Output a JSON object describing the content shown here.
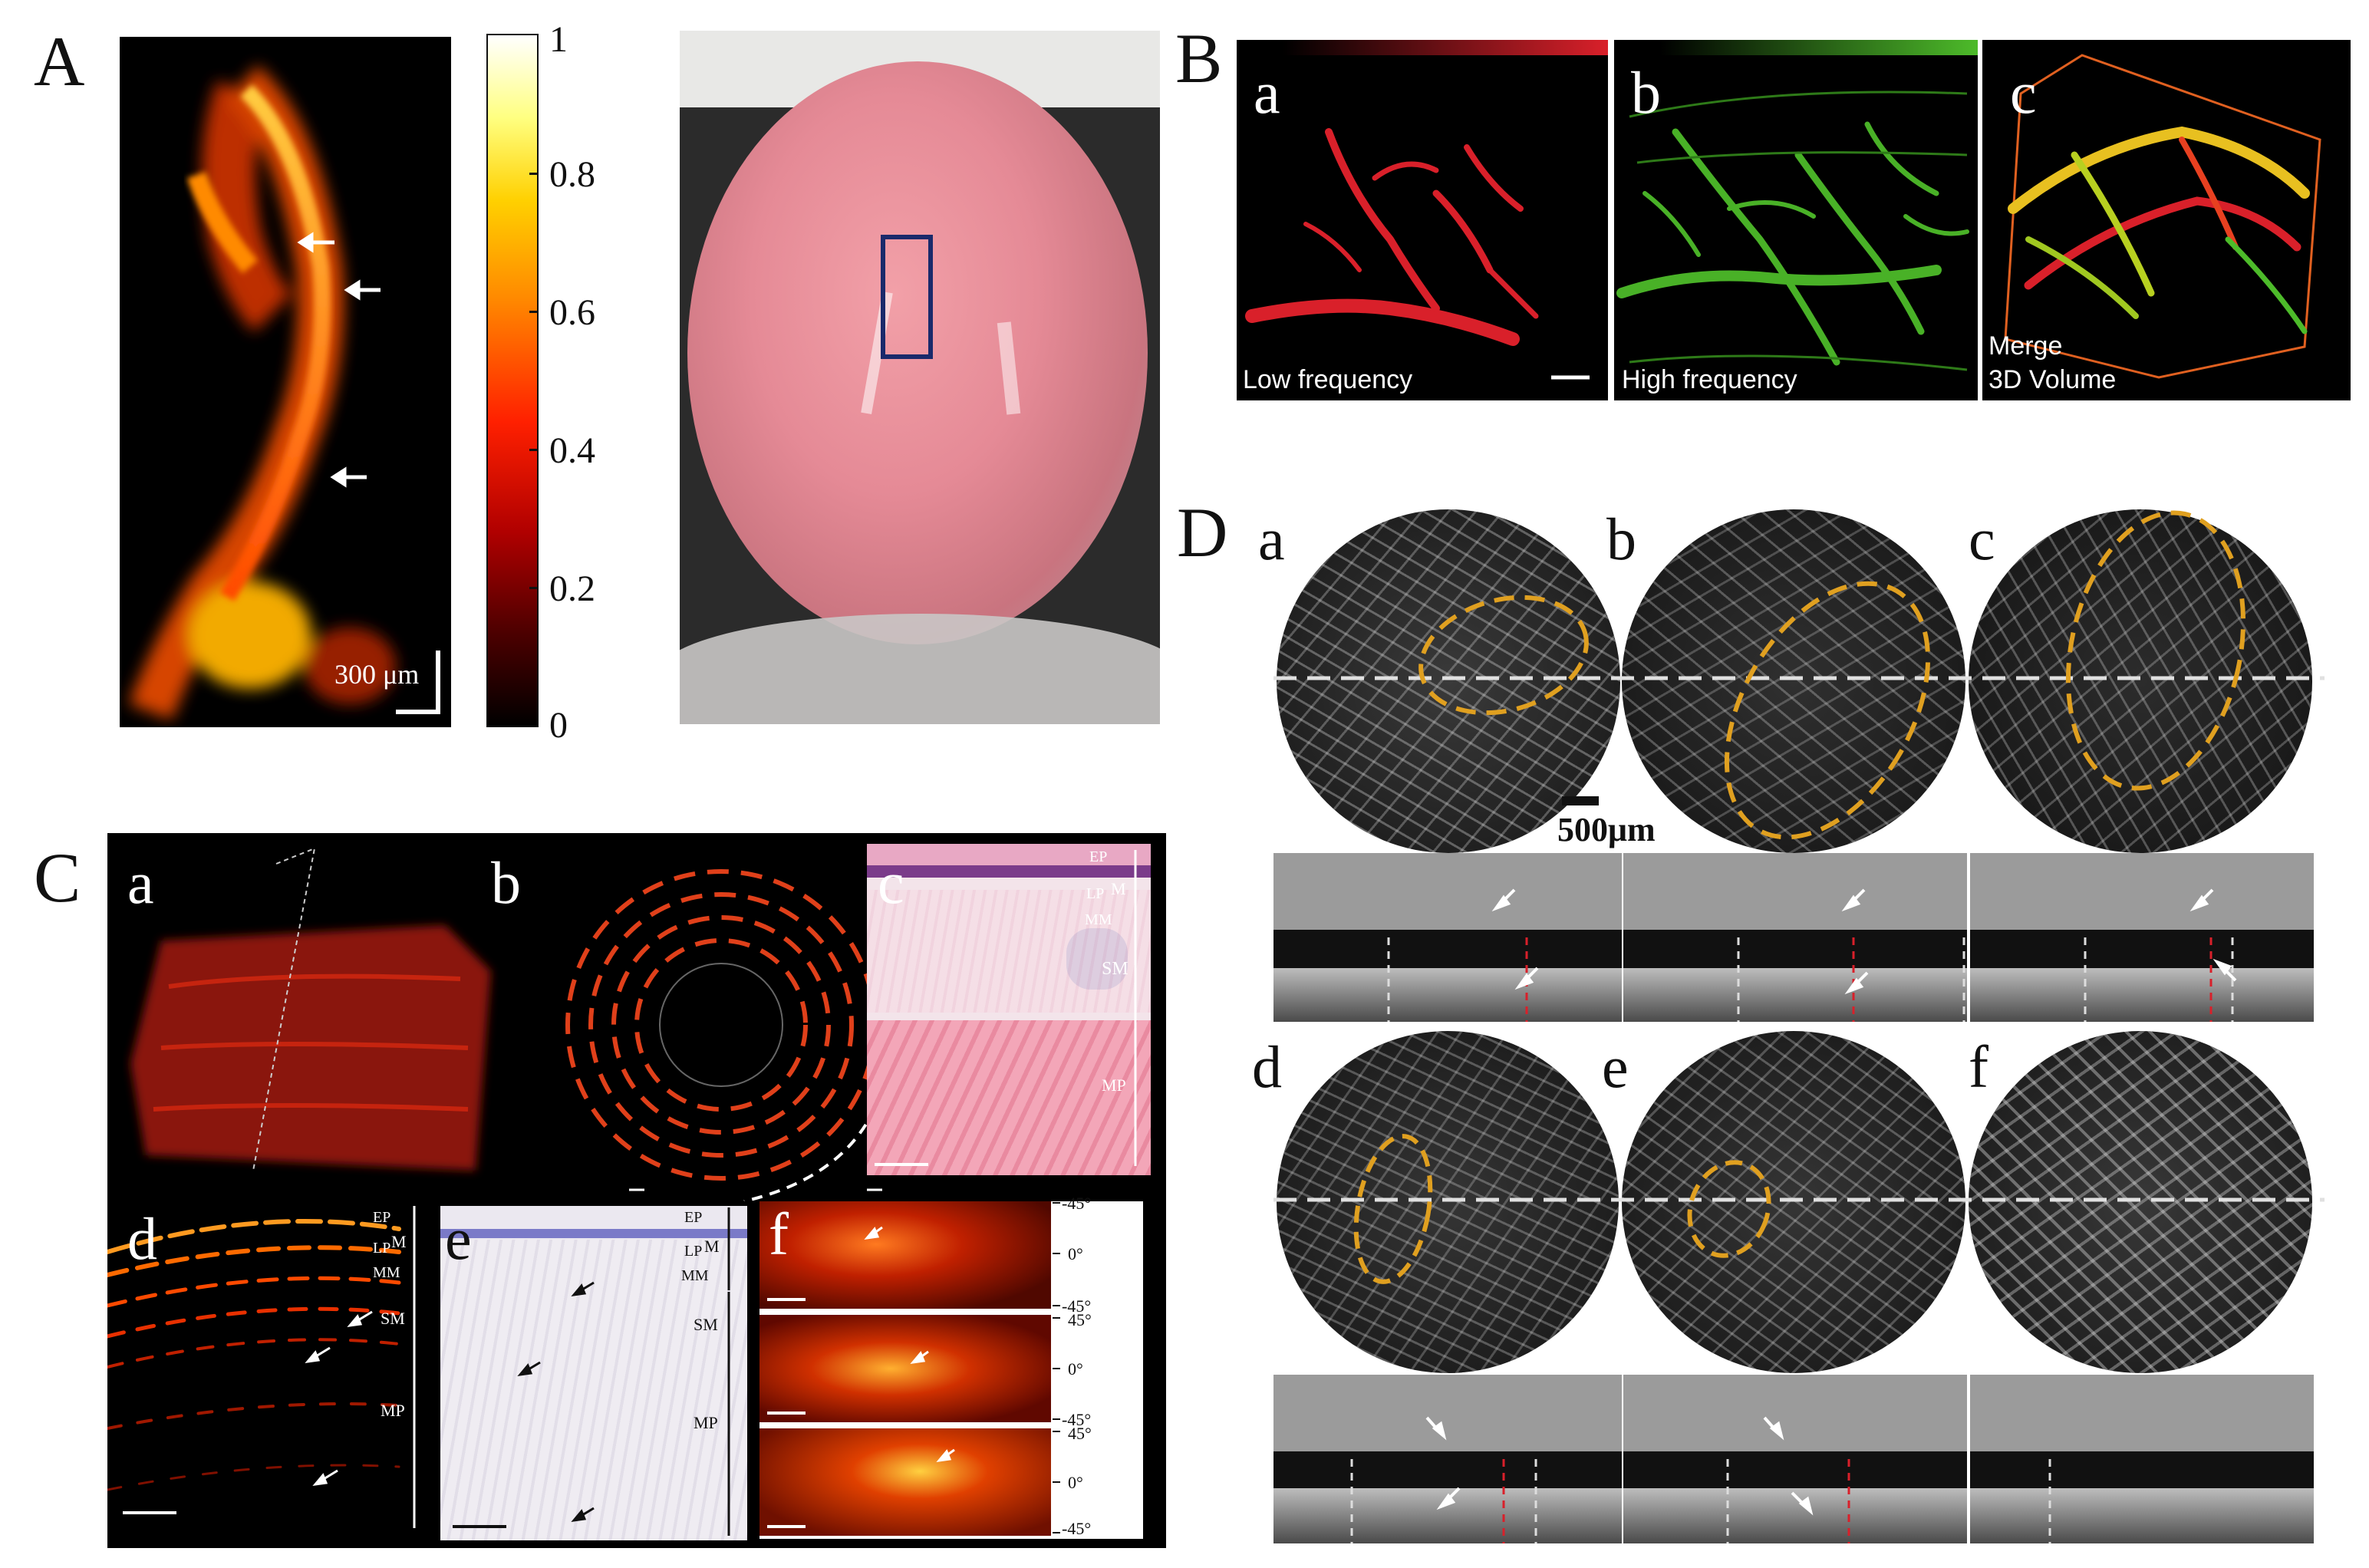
{
  "panels": {
    "A": {
      "label": "A",
      "colorbar_ticks": [
        "1",
        "0.8",
        "0.6",
        "0.4",
        "0.2",
        "0"
      ],
      "scalebar": "300 μm"
    },
    "B": {
      "label": "B",
      "sub": [
        {
          "letter": "a",
          "caption": "Low frequency"
        },
        {
          "letter": "b",
          "caption": "High frequency"
        },
        {
          "letter": "c",
          "caption_line1": "Merge",
          "caption_line2": "3D Volume"
        }
      ]
    },
    "C": {
      "label": "C",
      "sub_letters": [
        "a",
        "b",
        "c",
        "d",
        "e",
        "f"
      ],
      "layers_c": [
        "EP",
        "M",
        "LP",
        "MM",
        "SM",
        "MP"
      ],
      "layers_d": [
        "EP",
        "M",
        "LP",
        "MM",
        "SM",
        "MP"
      ],
      "layers_e": [
        "EP",
        "M",
        "LP",
        "MM",
        "SM",
        "MP"
      ],
      "angles": [
        "-45°",
        "0°",
        "-45°",
        "45°",
        "0°",
        "-45°",
        "45°",
        "0°",
        "-45°"
      ]
    },
    "D": {
      "label": "D",
      "sub_letters": [
        "a",
        "b",
        "c",
        "d",
        "e",
        "f"
      ],
      "scalebar": "500μm"
    }
  },
  "colors": {
    "hot_orange": "#ff6a00",
    "vessel_red": "#d9202a",
    "vessel_green": "#4dbb2a",
    "ellipse_gold": "#e0a020",
    "marker_blue": "#1a2a6b"
  }
}
